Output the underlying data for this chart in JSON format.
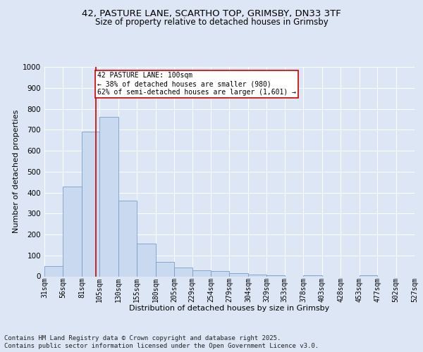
{
  "title1": "42, PASTURE LANE, SCARTHO TOP, GRIMSBY, DN33 3TF",
  "title2": "Size of property relative to detached houses in Grimsby",
  "xlabel": "Distribution of detached houses by size in Grimsby",
  "ylabel": "Number of detached properties",
  "bar_values": [
    50,
    430,
    690,
    760,
    360,
    155,
    70,
    42,
    30,
    25,
    15,
    10,
    5,
    0,
    5,
    0,
    0,
    5,
    0,
    0
  ],
  "bin_edges": [
    31,
    56,
    81,
    105,
    130,
    155,
    180,
    205,
    229,
    254,
    279,
    304,
    329,
    353,
    378,
    403,
    428,
    453,
    477,
    502,
    527
  ],
  "tick_labels": [
    "31sqm",
    "56sqm",
    "81sqm",
    "105sqm",
    "130sqm",
    "155sqm",
    "180sqm",
    "205sqm",
    "229sqm",
    "254sqm",
    "279sqm",
    "304sqm",
    "329sqm",
    "353sqm",
    "378sqm",
    "403sqm",
    "428sqm",
    "453sqm",
    "477sqm",
    "502sqm",
    "527sqm"
  ],
  "bar_color": "#c9d9ef",
  "bar_edgecolor": "#7a9ec8",
  "property_line_x": 100,
  "property_line_color": "#cc0000",
  "annotation_text": "42 PASTURE LANE: 100sqm\n← 38% of detached houses are smaller (980)\n62% of semi-detached houses are larger (1,601) →",
  "annotation_box_facecolor": "#ffffff",
  "annotation_box_edgecolor": "#cc0000",
  "ylim": [
    0,
    1000
  ],
  "yticks": [
    0,
    100,
    200,
    300,
    400,
    500,
    600,
    700,
    800,
    900,
    1000
  ],
  "footer1": "Contains HM Land Registry data © Crown copyright and database right 2025.",
  "footer2": "Contains public sector information licensed under the Open Government Licence v3.0.",
  "bg_color": "#dce6f5",
  "plot_bg_color": "#dce6f5",
  "title1_fontsize": 9.5,
  "title2_fontsize": 8.5,
  "tick_fontsize": 7,
  "ylabel_fontsize": 8,
  "xlabel_fontsize": 8,
  "footer_fontsize": 6.5,
  "annotation_fontsize": 7
}
